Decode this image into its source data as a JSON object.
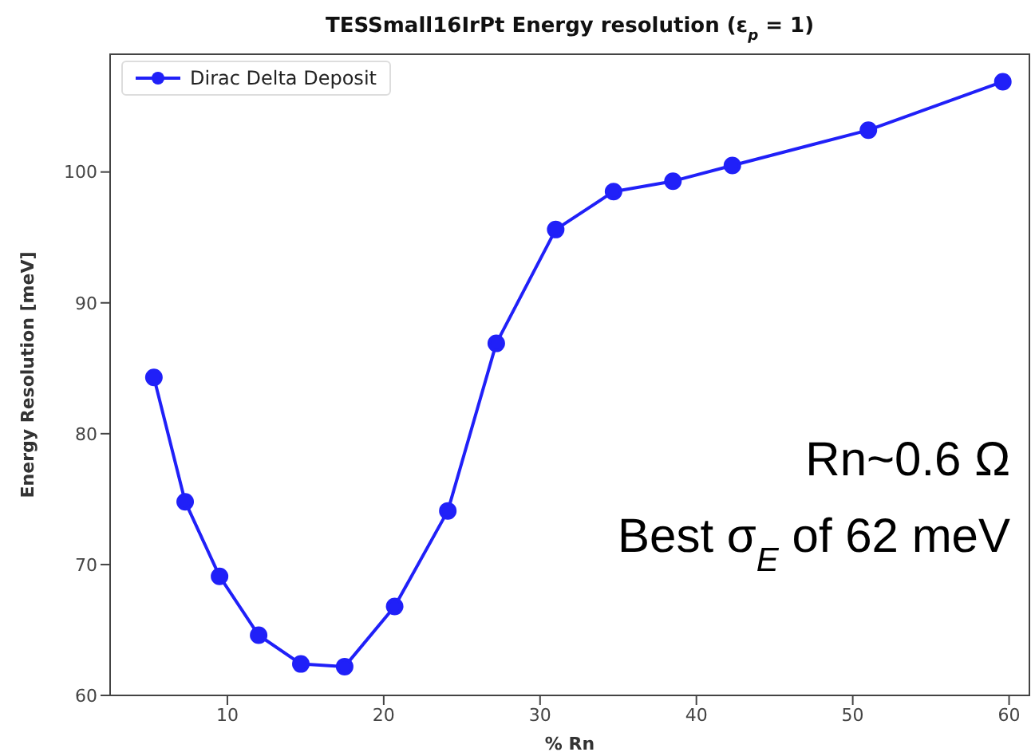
{
  "chart_data": {
    "type": "line",
    "title": "TESSmall16IrPt Energy resolution (ε$_{p}$ = 1)",
    "xlabel": "% Rn",
    "ylabel": "Energy Resolution [meV]",
    "x": [
      5.3,
      7.3,
      9.5,
      12.0,
      14.7,
      17.5,
      20.7,
      24.1,
      27.2,
      31.0,
      34.7,
      38.5,
      42.3,
      51.0,
      59.6
    ],
    "series": [
      {
        "name": "Dirac Delta Deposit",
        "color": "#2020f8",
        "values": [
          84.3,
          74.8,
          69.1,
          64.6,
          62.4,
          62.2,
          66.8,
          74.1,
          86.9,
          95.6,
          98.5,
          99.3,
          100.5,
          103.2,
          106.9
        ]
      }
    ],
    "xlim": [
      2.5,
      61.3
    ],
    "xticks": [
      10,
      20,
      30,
      40,
      50,
      60
    ],
    "ylim": [
      60,
      109
    ],
    "yticks": [
      60,
      70,
      80,
      90,
      100
    ],
    "legend": "top left",
    "marker": "circle",
    "line_style": "solid",
    "annotations": [
      "Rn~0.6 Ω",
      "Best σ$_{E}$ of 62 meV"
    ]
  }
}
